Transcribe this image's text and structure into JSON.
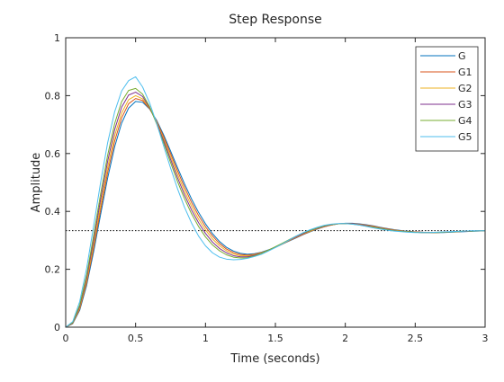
{
  "chart_data": {
    "type": "line",
    "title": "Step Response",
    "xlabel": "Time (seconds)",
    "ylabel": "Amplitude",
    "xlim": [
      0,
      3
    ],
    "ylim": [
      0,
      1
    ],
    "xticks": [
      0,
      0.5,
      1,
      1.5,
      2,
      2.5,
      3
    ],
    "xtick_labels": [
      "0",
      "0.5",
      "1",
      "1.5",
      "2",
      "2.5",
      "3"
    ],
    "yticks": [
      0,
      0.2,
      0.4,
      0.6,
      0.8,
      1
    ],
    "ytick_labels": [
      "0",
      "0.2",
      "0.4",
      "0.6",
      "0.8",
      "1"
    ],
    "grid": false,
    "legend_position": "top-right",
    "reference_line": {
      "y": 0.3333,
      "style": "dotted",
      "color": "#000000"
    },
    "x": [
      0,
      0.05,
      0.1,
      0.15,
      0.2,
      0.25,
      0.3,
      0.35,
      0.4,
      0.45,
      0.5,
      0.55,
      0.6,
      0.65,
      0.7,
      0.75,
      0.8,
      0.85,
      0.9,
      0.95,
      1.0,
      1.05,
      1.1,
      1.15,
      1.2,
      1.25,
      1.3,
      1.35,
      1.4,
      1.45,
      1.5,
      1.55,
      1.6,
      1.65,
      1.7,
      1.75,
      1.8,
      1.85,
      1.9,
      1.95,
      2.0,
      2.05,
      2.1,
      2.15,
      2.2,
      2.25,
      2.3,
      2.35,
      2.4,
      2.45,
      2.5,
      2.55,
      2.6,
      2.65,
      2.7,
      2.75,
      2.8,
      2.85,
      2.9,
      2.95,
      3.0
    ],
    "series": [
      {
        "name": "G",
        "color": "#0072BD",
        "values": [
          0,
          0.012,
          0.058,
          0.145,
          0.261,
          0.39,
          0.515,
          0.623,
          0.705,
          0.757,
          0.78,
          0.777,
          0.754,
          0.715,
          0.665,
          0.609,
          0.551,
          0.495,
          0.443,
          0.397,
          0.357,
          0.323,
          0.296,
          0.276,
          0.263,
          0.255,
          0.252,
          0.254,
          0.259,
          0.267,
          0.276,
          0.287,
          0.298,
          0.309,
          0.32,
          0.33,
          0.339,
          0.347,
          0.353,
          0.357,
          0.359,
          0.359,
          0.357,
          0.354,
          0.35,
          0.345,
          0.341,
          0.337,
          0.334,
          0.331,
          0.329,
          0.328,
          0.327,
          0.327,
          0.327,
          0.328,
          0.329,
          0.33,
          0.331,
          0.332,
          0.333
        ]
      },
      {
        "name": "G1",
        "color": "#D95319",
        "values": [
          0,
          0.013,
          0.062,
          0.153,
          0.274,
          0.406,
          0.534,
          0.642,
          0.723,
          0.772,
          0.79,
          0.783,
          0.755,
          0.712,
          0.659,
          0.6,
          0.54,
          0.483,
          0.431,
          0.386,
          0.347,
          0.315,
          0.289,
          0.27,
          0.258,
          0.251,
          0.249,
          0.252,
          0.258,
          0.266,
          0.276,
          0.287,
          0.299,
          0.31,
          0.321,
          0.331,
          0.34,
          0.347,
          0.353,
          0.357,
          0.358,
          0.358,
          0.356,
          0.353,
          0.349,
          0.344,
          0.34,
          0.336,
          0.333,
          0.33,
          0.329,
          0.328,
          0.327,
          0.327,
          0.328,
          0.329,
          0.33,
          0.331,
          0.332,
          0.333,
          0.333
        ]
      },
      {
        "name": "G2",
        "color": "#EDB120",
        "values": [
          0,
          0.014,
          0.066,
          0.161,
          0.287,
          0.423,
          0.552,
          0.661,
          0.74,
          0.786,
          0.8,
          0.789,
          0.757,
          0.709,
          0.652,
          0.59,
          0.528,
          0.47,
          0.418,
          0.373,
          0.336,
          0.305,
          0.281,
          0.264,
          0.253,
          0.247,
          0.246,
          0.25,
          0.257,
          0.266,
          0.277,
          0.288,
          0.3,
          0.312,
          0.323,
          0.332,
          0.341,
          0.348,
          0.353,
          0.357,
          0.358,
          0.357,
          0.355,
          0.352,
          0.347,
          0.343,
          0.339,
          0.335,
          0.332,
          0.33,
          0.328,
          0.327,
          0.327,
          0.327,
          0.328,
          0.329,
          0.33,
          0.331,
          0.332,
          0.333,
          0.333
        ]
      },
      {
        "name": "G3",
        "color": "#7E2F8E",
        "values": [
          0,
          0.015,
          0.071,
          0.171,
          0.302,
          0.442,
          0.573,
          0.682,
          0.76,
          0.802,
          0.812,
          0.797,
          0.759,
          0.706,
          0.645,
          0.58,
          0.516,
          0.457,
          0.405,
          0.361,
          0.324,
          0.294,
          0.272,
          0.257,
          0.247,
          0.243,
          0.243,
          0.248,
          0.256,
          0.266,
          0.277,
          0.289,
          0.301,
          0.313,
          0.324,
          0.334,
          0.342,
          0.349,
          0.354,
          0.357,
          0.358,
          0.357,
          0.354,
          0.351,
          0.346,
          0.342,
          0.338,
          0.334,
          0.331,
          0.329,
          0.328,
          0.327,
          0.327,
          0.327,
          0.328,
          0.329,
          0.33,
          0.331,
          0.332,
          0.333,
          0.333
        ]
      },
      {
        "name": "G4",
        "color": "#77AC30",
        "values": [
          0,
          0.016,
          0.076,
          0.181,
          0.317,
          0.461,
          0.594,
          0.703,
          0.779,
          0.818,
          0.825,
          0.805,
          0.762,
          0.703,
          0.637,
          0.569,
          0.503,
          0.444,
          0.392,
          0.348,
          0.312,
          0.284,
          0.264,
          0.25,
          0.242,
          0.239,
          0.24,
          0.246,
          0.255,
          0.266,
          0.278,
          0.29,
          0.303,
          0.315,
          0.326,
          0.335,
          0.343,
          0.35,
          0.355,
          0.357,
          0.358,
          0.356,
          0.353,
          0.349,
          0.345,
          0.341,
          0.337,
          0.333,
          0.331,
          0.329,
          0.328,
          0.327,
          0.327,
          0.327,
          0.328,
          0.329,
          0.33,
          0.332,
          0.332,
          0.333,
          0.333
        ]
      },
      {
        "name": "G5",
        "color": "#4DBEEE",
        "values": [
          0,
          0.019,
          0.088,
          0.204,
          0.35,
          0.501,
          0.637,
          0.744,
          0.816,
          0.852,
          0.865,
          0.83,
          0.775,
          0.705,
          0.627,
          0.55,
          0.478,
          0.414,
          0.36,
          0.315,
          0.281,
          0.257,
          0.242,
          0.235,
          0.233,
          0.234,
          0.238,
          0.244,
          0.252,
          0.263,
          0.275,
          0.288,
          0.302,
          0.315,
          0.327,
          0.337,
          0.345,
          0.352,
          0.356,
          0.358,
          0.358,
          0.356,
          0.353,
          0.348,
          0.343,
          0.339,
          0.335,
          0.332,
          0.33,
          0.328,
          0.327,
          0.327,
          0.327,
          0.328,
          0.329,
          0.33,
          0.331,
          0.332,
          0.333,
          0.333,
          0.333
        ]
      }
    ]
  }
}
